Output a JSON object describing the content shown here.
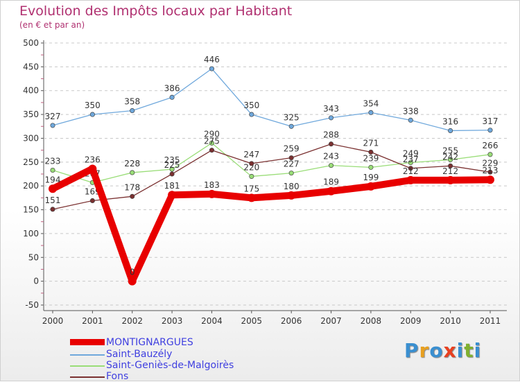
{
  "header": {
    "title": "Evolution des Impôts locaux par Habitant",
    "subtitle": "(en € et par an)"
  },
  "chart_data": {
    "type": "line",
    "title": "Evolution des Impôts locaux par Habitant",
    "subtitle": "(en € et par an)",
    "xlabel": "",
    "ylabel": "",
    "categories": [
      "2000",
      "2001",
      "2002",
      "2003",
      "2004",
      "2005",
      "2006",
      "2007",
      "2008",
      "2009",
      "2010",
      "2011"
    ],
    "y_ticks": [
      500,
      450,
      400,
      350,
      300,
      250,
      200,
      150,
      100,
      50,
      0,
      -50
    ],
    "ylim": [
      -50,
      500
    ],
    "grid": "horizontal dashed",
    "legend": "bottom-left",
    "series": [
      {
        "name": "MONTIGNARGUES",
        "color": "#e80000",
        "values": [
          194,
          236,
          0,
          181,
          183,
          175,
          180,
          189,
          199,
          212,
          212,
          213
        ]
      },
      {
        "name": "Saint-Bauzély",
        "color": "#6fa8dc",
        "values": [
          327,
          350,
          358,
          386,
          446,
          350,
          325,
          343,
          354,
          338,
          316,
          317
        ]
      },
      {
        "name": "Saint-Geniès-de-Malgoirès",
        "color": "#99dd77",
        "values": [
          233,
          207,
          228,
          235,
          290,
          220,
          227,
          243,
          239,
          249,
          255,
          266
        ]
      },
      {
        "name": "Fons",
        "color": "#7a3030",
        "values": [
          151,
          169,
          178,
          225,
          275,
          247,
          259,
          288,
          271,
          237,
          242,
          229
        ]
      }
    ]
  },
  "logo": {
    "letters": [
      "P",
      "r",
      "o",
      "x",
      "i",
      "t",
      "i"
    ],
    "colors": [
      "#3a8fd0",
      "#e8a020",
      "#3a8fd0",
      "#e84020",
      "#3a8fd0",
      "#80b030",
      "#3a8fd0"
    ]
  }
}
